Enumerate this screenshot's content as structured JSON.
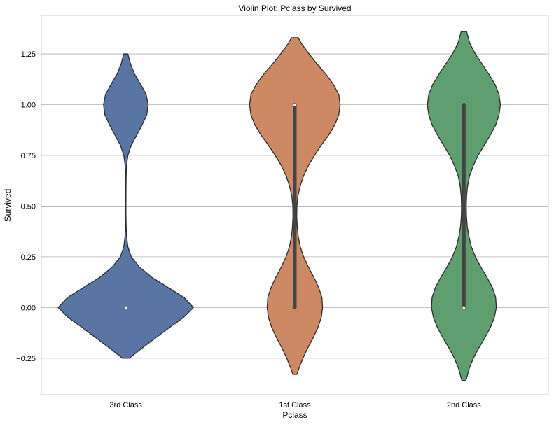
{
  "chart_data": {
    "type": "violin",
    "title": "Violin Plot: Pclass by Survived",
    "xlabel": "Pclass",
    "ylabel": "Survived",
    "categories": [
      "3rd Class",
      "1st Class",
      "2nd Class"
    ],
    "ylim": [
      -0.43,
      1.44
    ],
    "yticks": [
      -0.25,
      0.0,
      0.25,
      0.5,
      0.75,
      1.0,
      1.25
    ],
    "ytick_labels": [
      "−0.25",
      "0.00",
      "0.25",
      "0.50",
      "0.75",
      "1.00",
      "1.25"
    ],
    "grid": true,
    "grid_axis": "y",
    "colors": [
      "#5975a4",
      "#cc8963",
      "#5f9e6e"
    ],
    "edge_color": "#2b2b2b",
    "box_color": "#444444",
    "violins": [
      {
        "category": "3rd Class",
        "survived_rate": 0.24,
        "extent": [
          -0.25,
          1.25
        ],
        "median": 0.0,
        "q1": 0.0,
        "q3": 0.0,
        "profile": [
          [
            -0.25,
            0.05
          ],
          [
            -0.2,
            0.24
          ],
          [
            -0.15,
            0.44
          ],
          [
            -0.1,
            0.64
          ],
          [
            -0.05,
            0.85
          ],
          [
            0.0,
            1.0
          ],
          [
            0.05,
            0.86
          ],
          [
            0.1,
            0.62
          ],
          [
            0.15,
            0.38
          ],
          [
            0.2,
            0.2
          ],
          [
            0.25,
            0.08
          ],
          [
            0.3,
            0.03
          ],
          [
            0.35,
            0.012
          ],
          [
            0.4,
            0.005
          ],
          [
            0.45,
            0.002
          ],
          [
            0.5,
            0.0015
          ],
          [
            0.55,
            0.002
          ],
          [
            0.6,
            0.003
          ],
          [
            0.65,
            0.005
          ],
          [
            0.7,
            0.01
          ],
          [
            0.75,
            0.03
          ],
          [
            0.8,
            0.08
          ],
          [
            0.85,
            0.16
          ],
          [
            0.9,
            0.24
          ],
          [
            0.95,
            0.31
          ],
          [
            1.0,
            0.33
          ],
          [
            1.05,
            0.3
          ],
          [
            1.1,
            0.22
          ],
          [
            1.15,
            0.13
          ],
          [
            1.2,
            0.07
          ],
          [
            1.25,
            0.03
          ]
        ]
      },
      {
        "category": "1st Class",
        "survived_rate": 0.63,
        "extent": [
          -0.33,
          1.33
        ],
        "median": 1.0,
        "q1": 0.0,
        "q3": 1.0,
        "profile": [
          [
            -0.33,
            0.03
          ],
          [
            -0.3,
            0.06
          ],
          [
            -0.25,
            0.12
          ],
          [
            -0.2,
            0.19
          ],
          [
            -0.15,
            0.27
          ],
          [
            -0.1,
            0.34
          ],
          [
            -0.05,
            0.39
          ],
          [
            0.0,
            0.41
          ],
          [
            0.05,
            0.4
          ],
          [
            0.1,
            0.35
          ],
          [
            0.15,
            0.28
          ],
          [
            0.2,
            0.2
          ],
          [
            0.25,
            0.13
          ],
          [
            0.3,
            0.08
          ],
          [
            0.35,
            0.05
          ],
          [
            0.4,
            0.035
          ],
          [
            0.45,
            0.028
          ],
          [
            0.5,
            0.03
          ],
          [
            0.55,
            0.045
          ],
          [
            0.6,
            0.08
          ],
          [
            0.65,
            0.13
          ],
          [
            0.7,
            0.2
          ],
          [
            0.75,
            0.29
          ],
          [
            0.8,
            0.39
          ],
          [
            0.85,
            0.5
          ],
          [
            0.9,
            0.59
          ],
          [
            0.95,
            0.65
          ],
          [
            1.0,
            0.67
          ],
          [
            1.05,
            0.65
          ],
          [
            1.1,
            0.57
          ],
          [
            1.15,
            0.46
          ],
          [
            1.2,
            0.33
          ],
          [
            1.25,
            0.21
          ],
          [
            1.3,
            0.1
          ],
          [
            1.33,
            0.05
          ]
        ]
      },
      {
        "category": "2nd Class",
        "survived_rate": 0.47,
        "extent": [
          -0.36,
          1.36
        ],
        "median": 0.0,
        "q1": 0.0,
        "q3": 1.0,
        "profile": [
          [
            -0.36,
            0.03
          ],
          [
            -0.3,
            0.08
          ],
          [
            -0.25,
            0.14
          ],
          [
            -0.2,
            0.22
          ],
          [
            -0.15,
            0.31
          ],
          [
            -0.1,
            0.39
          ],
          [
            -0.05,
            0.45
          ],
          [
            0.0,
            0.48
          ],
          [
            0.05,
            0.47
          ],
          [
            0.1,
            0.42
          ],
          [
            0.15,
            0.34
          ],
          [
            0.2,
            0.25
          ],
          [
            0.25,
            0.17
          ],
          [
            0.3,
            0.11
          ],
          [
            0.35,
            0.075
          ],
          [
            0.4,
            0.05
          ],
          [
            0.45,
            0.038
          ],
          [
            0.5,
            0.035
          ],
          [
            0.55,
            0.04
          ],
          [
            0.6,
            0.055
          ],
          [
            0.65,
            0.085
          ],
          [
            0.7,
            0.14
          ],
          [
            0.75,
            0.21
          ],
          [
            0.8,
            0.3
          ],
          [
            0.85,
            0.39
          ],
          [
            0.9,
            0.47
          ],
          [
            0.95,
            0.52
          ],
          [
            1.0,
            0.54
          ],
          [
            1.05,
            0.52
          ],
          [
            1.1,
            0.46
          ],
          [
            1.15,
            0.37
          ],
          [
            1.2,
            0.27
          ],
          [
            1.25,
            0.17
          ],
          [
            1.3,
            0.09
          ],
          [
            1.36,
            0.04
          ]
        ]
      }
    ]
  }
}
